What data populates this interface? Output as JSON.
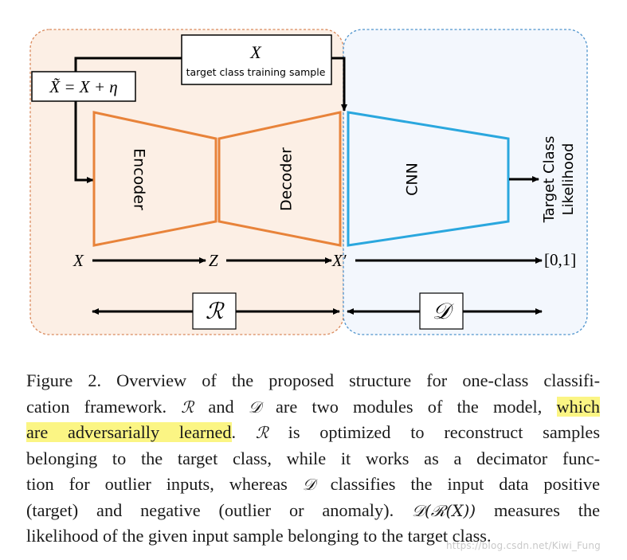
{
  "diagram": {
    "input_label": "X",
    "input_sublabel": "target class training sample",
    "noisy_input": "X̃ = X + η",
    "encoder_label": "Encoder",
    "decoder_label": "Decoder",
    "cnn_label": "CNN",
    "output_label_line1": "Target Class",
    "output_label_line2": "Likelihood",
    "flow": {
      "x": "X",
      "z": "Z",
      "x_prime": "X′",
      "range": "[0,1]"
    },
    "module_r": "ℛ",
    "module_d": "𝒟",
    "colors": {
      "r_panel_fill": "#fcefe5",
      "r_panel_border": "#d9895c",
      "d_panel_fill": "#f3f7fd",
      "d_panel_border": "#4f94cd",
      "encoder_decoder_stroke": "#e8833a",
      "cnn_stroke": "#2aa7de",
      "arrow": "#000000",
      "highlight": "#fbf584"
    }
  },
  "caption": {
    "line1": "Figure 2. Overview of the proposed structure for one-class classifi-",
    "line2_a": "cation framework.",
    "line2_r": "ℛ",
    "line2_b": " and ",
    "line2_d": "𝒟",
    "line2_c": " are two modules of the model, ",
    "line2_hl": "which",
    "line3_hl": "are adversarially learned",
    "line3_a": ". ",
    "line3_r": "ℛ",
    "line3_b": " is optimized to reconstruct samples",
    "line4": "belonging to the target class, while it works as a decimator func-",
    "line5_a": "tion for outlier inputs, whereas ",
    "line5_d": "𝒟",
    "line5_b": " classifies the input data positive",
    "line6_a": "(target) and negative (outlier or anomaly). ",
    "line6_expr": "𝒟(ℛ(X))",
    "line6_b": " measures the",
    "line7": "likelihood of the given input sample belonging to the target class."
  },
  "watermark": "https://blog.csdn.net/Kiwi_Fung"
}
